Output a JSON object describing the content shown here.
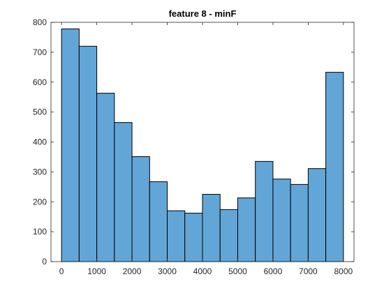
{
  "chart_data": {
    "type": "bar",
    "title": "feature 8 - minF",
    "xlabel": "",
    "ylabel": "",
    "bin_edges": [
      0,
      500,
      1000,
      1500,
      2000,
      2500,
      3000,
      3500,
      4000,
      4500,
      5000,
      5500,
      6000,
      6500,
      7000,
      7500,
      8000
    ],
    "values": [
      778,
      720,
      563,
      465,
      351,
      267,
      170,
      162,
      225,
      174,
      213,
      335,
      276,
      258,
      311,
      633
    ],
    "xlim": [
      -300,
      8300
    ],
    "ylim": [
      0,
      800
    ],
    "xticks": [
      0,
      1000,
      2000,
      3000,
      4000,
      5000,
      6000,
      7000,
      8000
    ],
    "yticks": [
      0,
      100,
      200,
      300,
      400,
      500,
      600,
      700,
      800
    ],
    "grid": false,
    "bar_color": "#62a6d7",
    "edge_color": "#000000"
  }
}
